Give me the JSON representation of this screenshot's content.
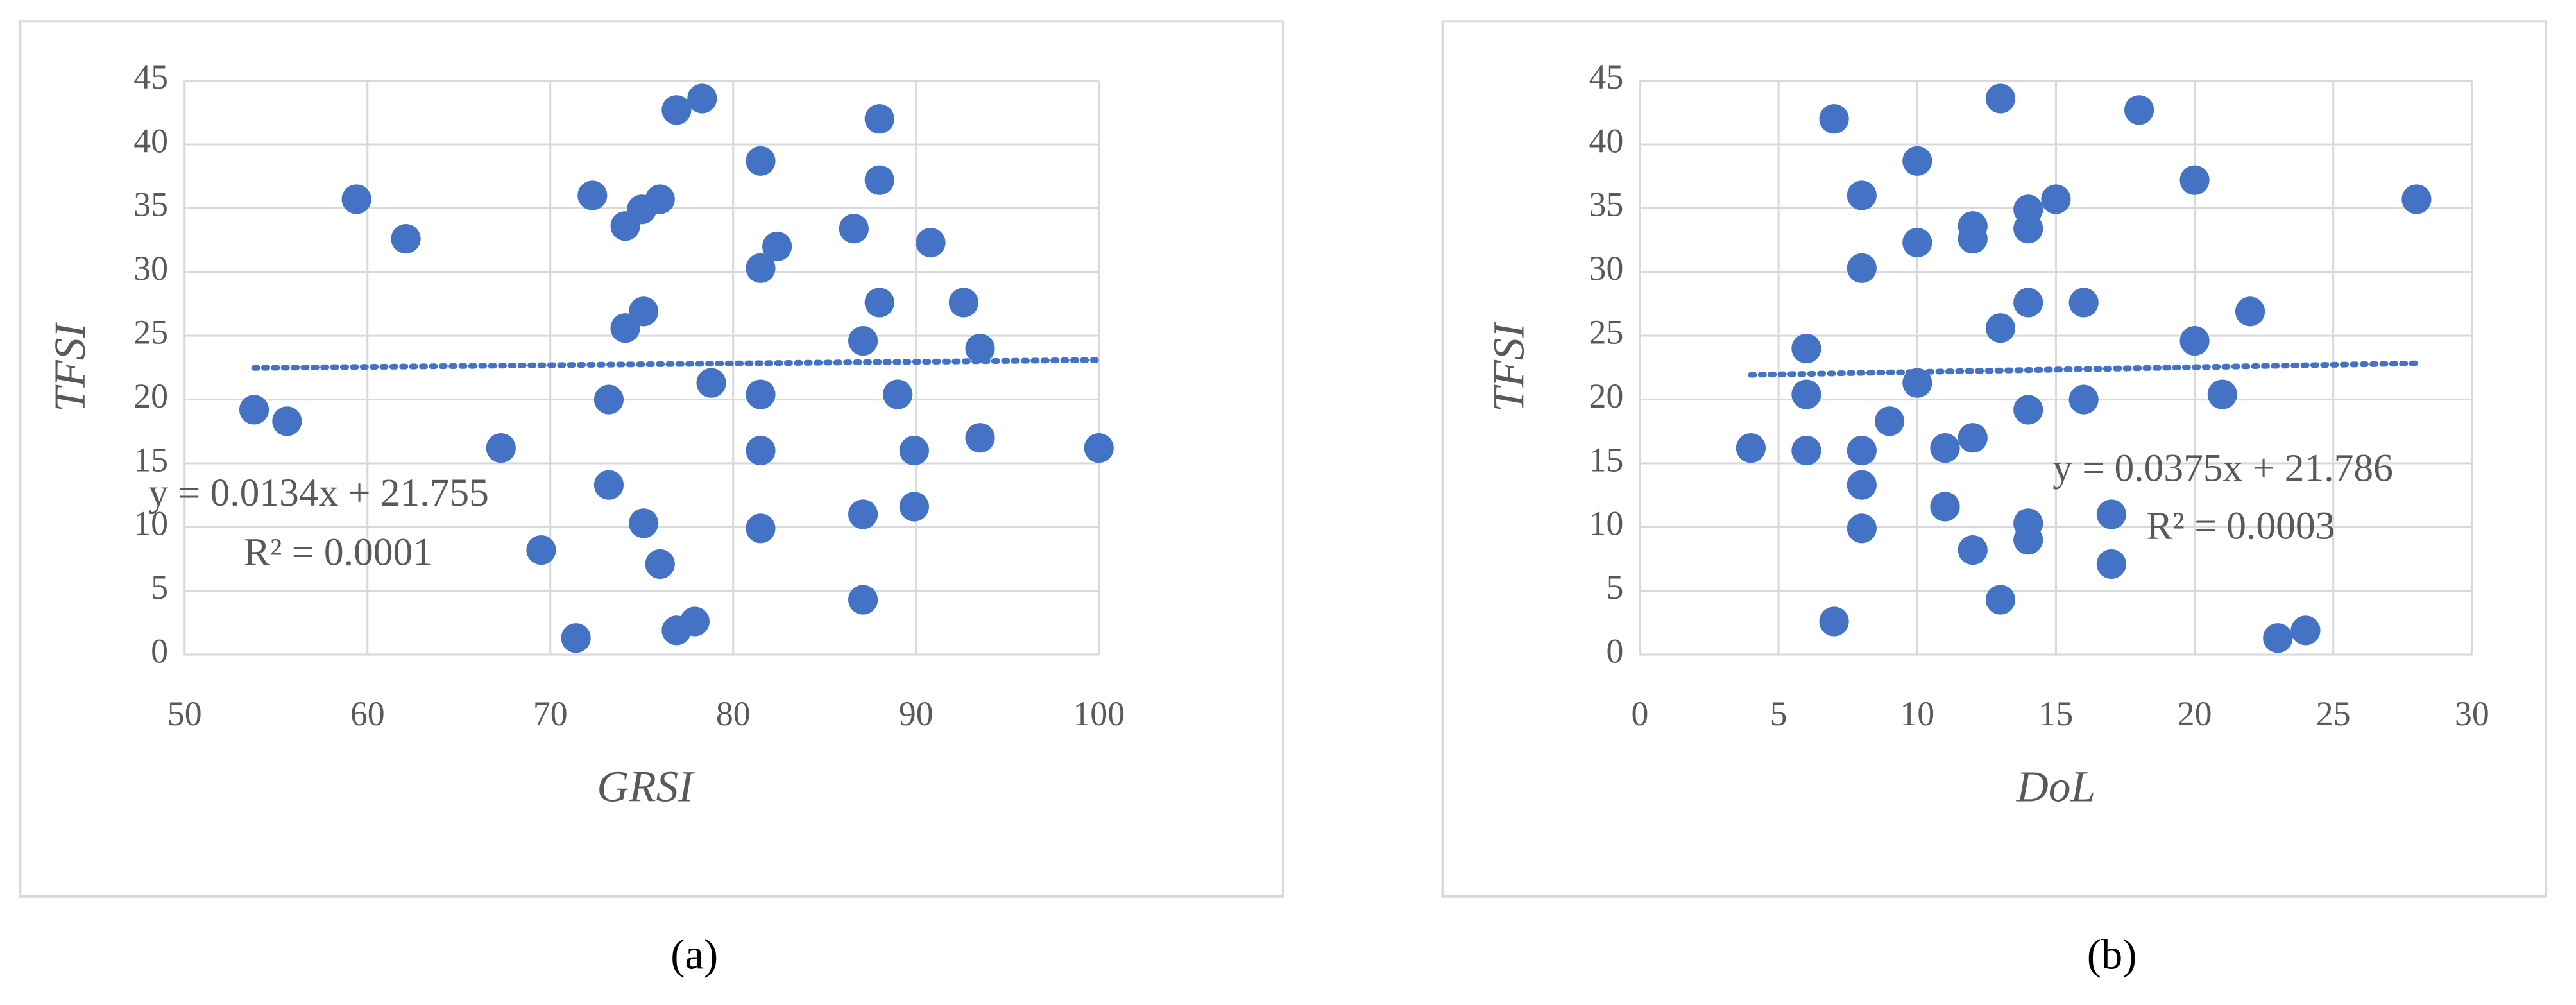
{
  "chart_data": [
    {
      "type": "scatter",
      "caption": "(a)",
      "x_label": "GRSI",
      "y_label": "TFSI",
      "color": "#4472c4",
      "grid": true,
      "xlim": [
        50,
        100
      ],
      "xticks": [
        50,
        60,
        70,
        80,
        90,
        100
      ],
      "ylim": [
        0,
        45
      ],
      "yticks": [
        0,
        5,
        10,
        15,
        20,
        25,
        30,
        35,
        40,
        45
      ],
      "x": [
        53.8,
        55.6,
        59.4,
        62.1,
        67.3,
        69.5,
        71.4,
        72.3,
        73.2,
        73.2,
        74.1,
        74.1,
        75.0,
        75.1,
        75.1,
        76.0,
        76.0,
        76.9,
        76.9,
        77.9,
        78.3,
        78.8,
        81.5,
        81.5,
        81.5,
        81.5,
        81.5,
        82.4,
        86.6,
        87.1,
        87.1,
        87.1,
        88.0,
        88.0,
        88.0,
        89.0,
        89.9,
        89.9,
        90.8,
        92.6,
        93.5,
        93.5,
        100
      ],
      "values": [
        19.2,
        18.3,
        35.7,
        32.6,
        16.2,
        8.2,
        1.3,
        36.0,
        13.3,
        20.0,
        33.6,
        25.6,
        34.9,
        26.9,
        10.3,
        35.7,
        7.1,
        42.7,
        1.9,
        2.6,
        43.6,
        21.3,
        38.7,
        30.3,
        20.4,
        16.0,
        9.9,
        32.0,
        33.4,
        24.6,
        11.0,
        4.3,
        42.0,
        37.2,
        27.6,
        20.4,
        16.0,
        11.6,
        32.3,
        27.6,
        24.0,
        17.0,
        16.2
      ],
      "trendline": {
        "slope": 0.0134,
        "intercept": 21.755,
        "label": "y = 0.0134x + 21.755",
        "r2_label": "R² = 0.0001"
      }
    },
    {
      "type": "scatter",
      "caption": "(b)",
      "x_label": "DoL",
      "y_label": "TFSI",
      "color": "#4472c4",
      "grid": true,
      "xlim": [
        0,
        30
      ],
      "xticks": [
        0,
        5,
        10,
        15,
        20,
        25,
        30
      ],
      "ylim": [
        0,
        45
      ],
      "yticks": [
        0,
        5,
        10,
        15,
        20,
        25,
        30,
        35,
        40,
        45
      ],
      "x": [
        4,
        6,
        6,
        6,
        7,
        7,
        8,
        8,
        8,
        8,
        8,
        9,
        10,
        10,
        10,
        11,
        11,
        12,
        12,
        12,
        12,
        13,
        13,
        13,
        14,
        14,
        14,
        14,
        14,
        14,
        15,
        16,
        16,
        17,
        17,
        18,
        20,
        20,
        22,
        21,
        23,
        24,
        28
      ],
      "values": [
        16.2,
        24.0,
        20.4,
        16.0,
        42.0,
        2.6,
        36.0,
        30.3,
        16.0,
        13.3,
        9.9,
        18.3,
        38.7,
        32.3,
        21.3,
        16.2,
        11.6,
        33.6,
        32.6,
        17.0,
        8.2,
        43.6,
        25.6,
        4.3,
        34.9,
        33.4,
        27.6,
        19.2,
        10.3,
        9.0,
        35.7,
        27.6,
        20.0,
        11.0,
        7.1,
        42.7,
        37.2,
        24.6,
        26.9,
        20.4,
        1.3,
        1.9,
        35.7
      ],
      "trendline": {
        "slope": 0.0375,
        "intercept": 21.786,
        "label": "y = 0.0375x + 21.786",
        "r2_label": "R² = 0.0003"
      }
    }
  ]
}
